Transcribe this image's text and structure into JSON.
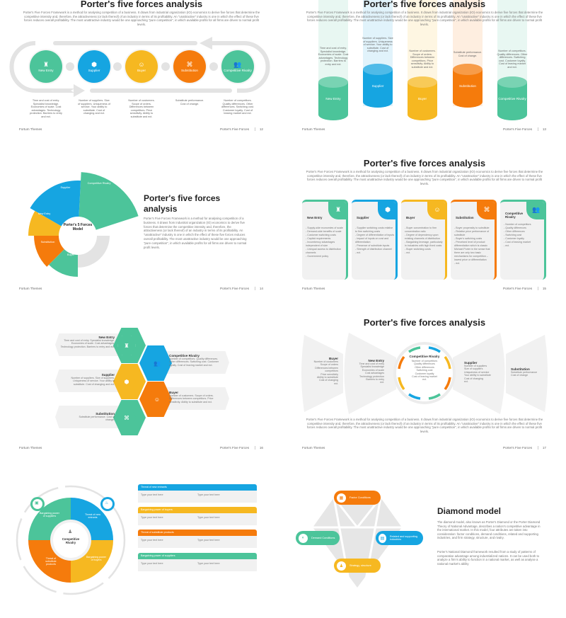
{
  "colors": {
    "green": "#4cc49a",
    "blue": "#16a5e1",
    "yellow": "#f6b821",
    "orange": "#f57b0c",
    "gray": "#e3e3e3"
  },
  "common": {
    "title": "Porter's five forces analysis",
    "description": "Porter's Five Forces Framework is a method for analysing competition of a business. It draws from industrial organization (IO) economics to derive five forces that determine the competitive intensity and, therefore, the attractiveness (or lack thereof) of an industry in terms of its profitability. An \"unattractive\" industry is one in which the effect of these five forces reduces overall profitability. The most unattractive industry would be one approaching \"pure competition\", in which available profits for all firms are driven to normal profit levels.",
    "footer_left": "Fortum Themes",
    "footer_right": "Porter's Five Forces"
  },
  "slides": [
    {
      "page": "12",
      "forces": [
        {
          "label": "New Entry",
          "icon": "tower-icon",
          "text": "Time and cost of entry. Specialist knowledge. Economies of scale. Cost advantages. Technology protection. Barriers to entry and ect."
        },
        {
          "label": "Supplier",
          "icon": "box-icon",
          "text": "Number of suppliers. Size of suppliers. Uniqueness of service. Your ability to substitute. Cost of changing and ect."
        },
        {
          "label": "Buyer",
          "icon": "faces-icon",
          "text": "Number of customers. Scope of orders. Differences between competitors. Price sensitivity. Ability to substitute and ect."
        },
        {
          "label": "Substitution",
          "icon": "network-icon",
          "text": "Substitute performance. Cost of change."
        },
        {
          "label": "Competitive Rivalry",
          "icon": "people-icon",
          "text": "Number of competitors. Quality differences. Other differences. Switching cost. Customer loyalty. Cost of leaving market and ect."
        }
      ]
    },
    {
      "page": "13",
      "forces": [
        {
          "label": "New Entry",
          "text": "Time and cost of entry. Specialist knowledge. Economies of scale. Cost advantages. Technology protection. Barriers to entry and ect."
        },
        {
          "label": "Supplier",
          "text": "Number of suppliers. Size of suppliers. Uniqueness of service. Your ability to substitute. Cost of changing and ect."
        },
        {
          "label": "Buyer",
          "text": "Number of customers. Scope of orders. Differences between competitors. Price sensitivity. Ability to substitute and ect."
        },
        {
          "label": "Substitution",
          "text": "Substitute performance. Cost of change."
        },
        {
          "label": "Competitive Rivalry",
          "text": "Number of competitors. Quality differences. Other differences. Switching cost. Customer loyalty. Cost of leaving market and ect."
        }
      ]
    },
    {
      "page": "14",
      "center": "Porter's 5 Forces Model",
      "title": "Porter's five forces analysis",
      "segments": [
        "Competitive Rivalry",
        "Supplier",
        "New Entry",
        "Substitution",
        "Buyer"
      ]
    },
    {
      "page": "15",
      "cards": [
        {
          "label": "New Entry",
          "icon": "tower-icon",
          "items": "- Supply-side economies of scale\n- Demand-side benefits of scale\n- Customer switching costs\n- Capital requirements\n- Incumbency advantages independent of size\n- Unequal access to distribution channels\n- Government policy"
        },
        {
          "label": "Supplier",
          "icon": "box-icon",
          "items": "- Supplier switching costs relative to firm switching costs\n- Degree of differentiation of inputs\n- Impact of inputs on cost and differentiation\n- Presence of substitute inputs\n- Strength of distribution channel\n- ect."
        },
        {
          "label": "Buyer",
          "icon": "faces-icon",
          "items": "- Buyer concentration to firm concentration ratio\n- Degree of dependency upon existing channels of distribution\n- Bargaining leverage, particularly in industries with high fixed costs\n- Buyer switching costs\n- ect."
        },
        {
          "label": "Substitution",
          "icon": "network-icon",
          "items": "- Buyer propensity to substitute\n- Relative price performance of substitute\n- Buyer's switching costs\n- Perceived level of product differentiation which is classic Michael Porter in the sense that there are only two basic mechanisms for competition – lowest price or differentiation\n- ect."
        },
        {
          "label": "Competitive Rivalry",
          "icon": "people-icon",
          "items": "- Number of competitors\n- Quality differences\n- Other differences\n- Switching cost\n- Customer loyalty\n- Cost of leaving market\n- ect."
        }
      ]
    },
    {
      "page": "16",
      "items": [
        {
          "label": "New Entry",
          "text": "Time and cost of entry. Specialist knowledge. Economies of scale. Cost advantages. Technology protection. Barriers to entry and ect."
        },
        {
          "label": "Competitive Rivalry",
          "text": "Number of competitors. Quality differences. Other differences. Switching cost. Customer loyalty. Cost of leaving market and ect."
        },
        {
          "label": "Supplier",
          "text": "Number of suppliers. Size of suppliers. Uniqueness of service. Your ability to substitute. Cost of changing and ect."
        },
        {
          "label": "Buyer",
          "text": "Number of customers. Scope of orders. Differences between competitors. Price sensitivity. Ability to substitute and ect."
        },
        {
          "label": "Substitution",
          "text": "Substitute performance. Cost of change."
        }
      ]
    },
    {
      "page": "17",
      "buyer": {
        "label": "Buyer",
        "text": "Number of customers\nScope of orders\nDifferences between competitors\nPrice sensitivity\nAbility to substitute\nCost of changing\nect."
      },
      "new_entry": {
        "label": "New Entry",
        "text": "Time and cost of entry\nSpecialist knowledge\nEconomies of scale\nCost advantages\nTechnology protection\nBarriers to entry\nect."
      },
      "rivalry": {
        "label": "Competitive Rivalry",
        "text": "Number of competitors\nQuality differences\nOther differences\nSwitching cost\nCustomer loyalty\nCost of leaving market\nect."
      },
      "supplier": {
        "label": "Supplier",
        "text": "Number of suppliers\nSize of suppliers\nUniqueness of service\nYour ability to substitute\nCost of changing\nect."
      },
      "substitution": {
        "label": "Substitution",
        "text": "Substitute performance\nCost of change"
      }
    },
    {
      "center": "Competitive Rivalry",
      "quadrants": [
        "Bargaining power of suppliers",
        "Threat of new entrants",
        "Threat of substitute products",
        "Bargaining power of buyers"
      ],
      "table": [
        {
          "header": "Threat of new entrants",
          "col1": "Type your text here",
          "col2": "Type your text here"
        },
        {
          "header": "Bargaining power of buyers",
          "col1": "Type your text here",
          "col2": "Type your text here"
        },
        {
          "header": "Threat of substitute products",
          "col1": "Type your text here",
          "col2": "Type your text here"
        },
        {
          "header": "Bargaining power of suppliers",
          "col1": "Type your text here",
          "col2": "Type your text here"
        }
      ]
    },
    {
      "title": "Diamond model",
      "nodes": [
        "Factor Conditions",
        "Demand Conditions",
        "Related and supporting industries",
        "Strategy, structure"
      ],
      "p1": "The diamond model, also known as Porter's Diamond or the Porter Diamond Theory of National Advantage, describes a nation's competitive advantage in the international market. In this model, four attributes are taken into consideration: factor conditions, demand conditions, related and supporting industries, and firm strategy, structure, and rivalry.",
      "p2": "Porter's National Diamond framework resulted from a study of patterns of comparative advantage among industrialized nations. It can be used both to analyze a firm's ability to function in a national market, as well as analyse a national market's ability"
    }
  ]
}
